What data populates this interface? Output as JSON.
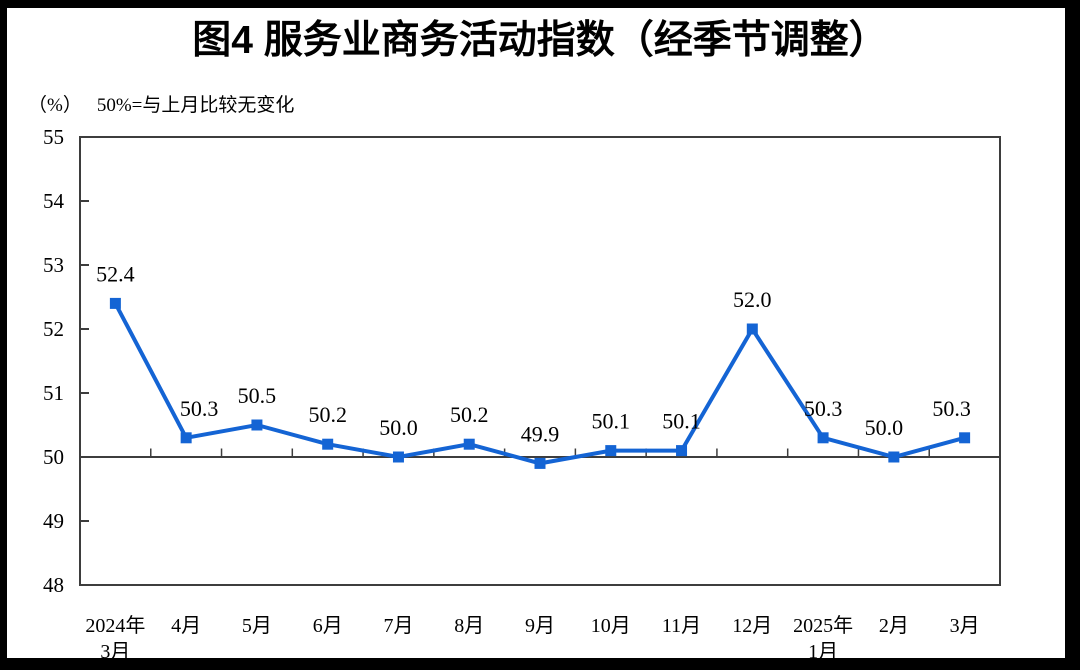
{
  "page": {
    "title": "图4  服务业商务活动指数（经季节调整）",
    "unit_label": "（%）",
    "baseline_note": "50%=与上月比较无变化"
  },
  "chart_data": {
    "type": "line",
    "title": "图4 服务业商务活动指数（经季节调整）",
    "subtitle_unit": "（%）",
    "subtitle_note": "50%=与上月比较无变化",
    "categories": [
      [
        "2024年",
        "3月"
      ],
      [
        "4月"
      ],
      [
        "5月"
      ],
      [
        "6月"
      ],
      [
        "7月"
      ],
      [
        "8月"
      ],
      [
        "9月"
      ],
      [
        "10月"
      ],
      [
        "11月"
      ],
      [
        "12月"
      ],
      [
        "2025年",
        "1月"
      ],
      [
        "2月"
      ],
      [
        "3月"
      ]
    ],
    "values": [
      52.4,
      50.3,
      50.5,
      50.2,
      50.0,
      50.2,
      49.9,
      50.1,
      50.1,
      52.0,
      50.3,
      50.0,
      50.3
    ],
    "data_labels": [
      "52.4",
      "50.3",
      "50.5",
      "50.2",
      "50.0",
      "50.2",
      "49.9",
      "50.1",
      "50.1",
      "52.0",
      "50.3",
      "50.0",
      "50.3"
    ],
    "ylim": [
      48,
      55
    ],
    "yticks": [
      48,
      49,
      50,
      51,
      52,
      53,
      54,
      55
    ],
    "baseline_value": 50,
    "grid": false,
    "legend": false,
    "colors": {
      "line": "#1464D4",
      "marker": "#1464D4",
      "axis": "#3D3D3D",
      "text": "#000000"
    }
  }
}
